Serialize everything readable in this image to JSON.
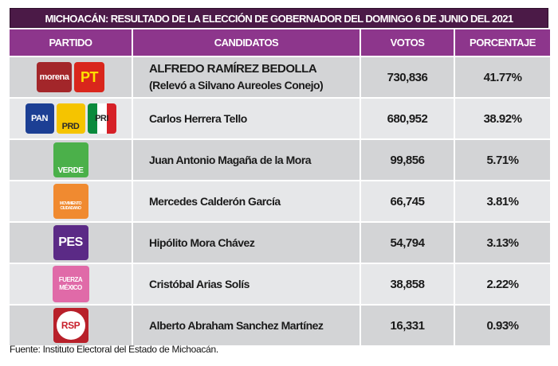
{
  "title": "MICHOACÁN: RESULTADO DE LA ELECCIÓN DE GOBERNADOR DEL DOMINGO 6 DE JUNIO DEL 2021",
  "headers": [
    "PARTIDO",
    "CANDIDATOS",
    "VOTOS",
    "PORCENTAJE"
  ],
  "rows": [
    {
      "parties": [
        "morena",
        "PT"
      ],
      "candidate": "ALFREDO RAMÍREZ BEDOLLA",
      "note": "(Relevó a Silvano Aureoles Conejo)",
      "votes": "730,836",
      "pct": "41.77%"
    },
    {
      "parties": [
        "PAN",
        "PRD",
        "PRI"
      ],
      "candidate": "Carlos Herrera Tello",
      "votes": "680,952",
      "pct": "38.92%"
    },
    {
      "parties": [
        "VERDE"
      ],
      "candidate": "Juan Antonio Magaña de la Mora",
      "votes": "99,856",
      "pct": "5.71%"
    },
    {
      "parties": [
        "MOVIMIENTO CIUDADANO"
      ],
      "candidate": "Mercedes Calderón García",
      "votes": "66,745",
      "pct": "3.81%"
    },
    {
      "parties": [
        "PES"
      ],
      "candidate": "Hipólito Mora Chávez",
      "votes": "54,794",
      "pct": "3.13%"
    },
    {
      "parties": [
        "FUERZA MÉXICO"
      ],
      "candidate": "Cristóbal Arias Solís",
      "votes": "38,858",
      "pct": "2.22%"
    },
    {
      "parties": [
        "RSP"
      ],
      "candidate": "Alberto Abraham Sanchez Martínez",
      "votes": "16,331",
      "pct": "0.93%"
    }
  ],
  "footer": "Fuente: Instituto Electoral del Estado de Michoacán.",
  "colors": {
    "title": "#4b1a47",
    "header": "#8d368c",
    "row_dark": "#d3d4d6",
    "row_light": "#e6e7e9"
  }
}
